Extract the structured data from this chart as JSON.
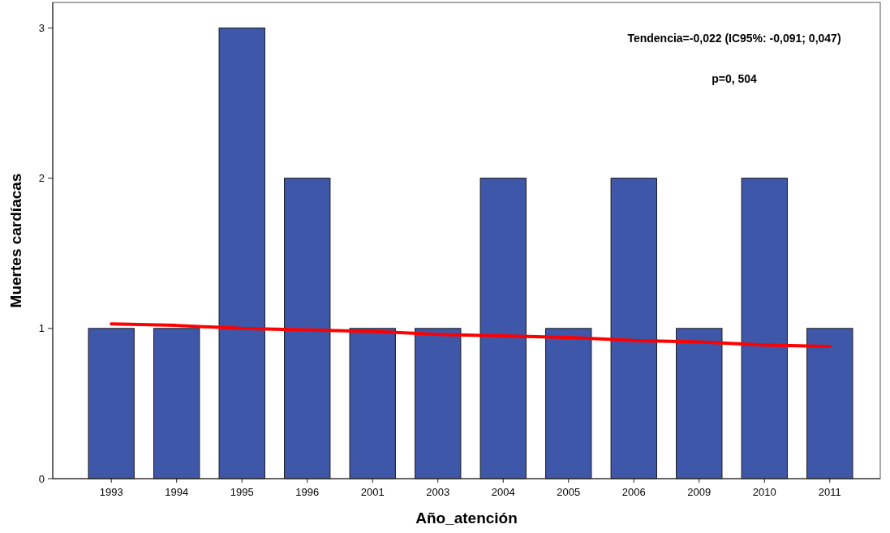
{
  "chart_data": {
    "type": "bar",
    "xlabel": "Año_atención",
    "ylabel": "Muertes cardíacas",
    "categories": [
      "1993",
      "1994",
      "1995",
      "1996",
      "2001",
      "2003",
      "2004",
      "2005",
      "2006",
      "2009",
      "2010",
      "2011"
    ],
    "series": [
      {
        "color": "#3f57a9",
        "values": [
          1,
          1,
          3,
          2,
          1,
          1,
          2,
          1,
          2,
          1,
          2,
          1
        ]
      },
      {
        "type": "line",
        "color": "#ff0000",
        "values": [
          1.03,
          1.02,
          1.0,
          0.99,
          0.98,
          0.96,
          0.95,
          0.94,
          0.92,
          0.91,
          0.89,
          0.88
        ]
      }
    ],
    "ylim": [
      0,
      3.17
    ],
    "yticks": [
      0,
      1,
      2,
      3
    ],
    "grid": false,
    "annotations": [
      "Tendencia=-0,022 (IC95%: -0,091; 0,047)",
      "p=0, 504"
    ]
  }
}
